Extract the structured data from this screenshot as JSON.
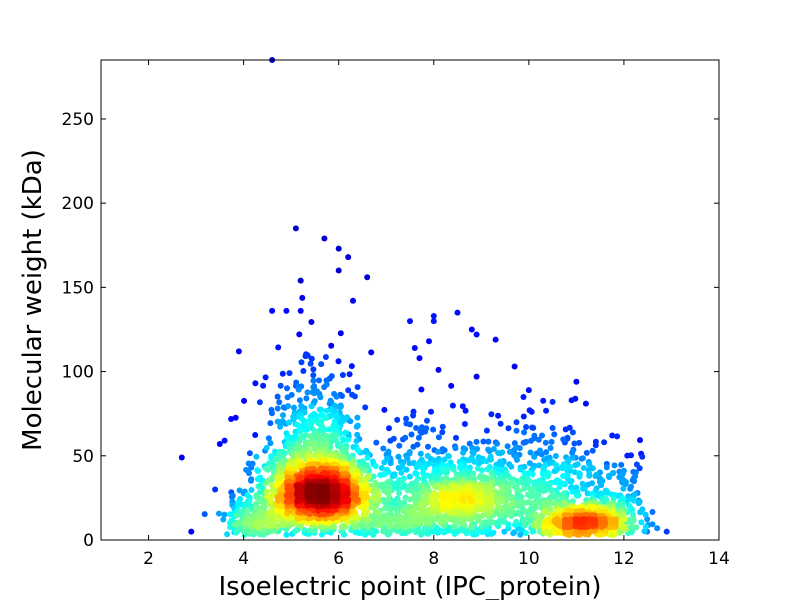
{
  "chart_data": {
    "type": "scatter",
    "title": "",
    "xlabel": "Isoelectric point (IPC_protein)",
    "ylabel": "Molecular weight (kDa)",
    "xlim": [
      1,
      14
    ],
    "ylim": [
      0,
      285
    ],
    "x_ticks": [
      2,
      4,
      6,
      8,
      10,
      12,
      14
    ],
    "y_ticks": [
      0,
      50,
      100,
      150,
      200,
      250
    ],
    "grid": false,
    "legend": "none",
    "colormap": "jet (point density)",
    "density_clusters": [
      {
        "x": 5.6,
        "y": 28,
        "peak_density": "highest"
      },
      {
        "x": 8.6,
        "y": 22,
        "peak_density": "medium"
      },
      {
        "x": 11.3,
        "y": 10,
        "peak_density": "medium"
      },
      {
        "x": 4.3,
        "y": 12,
        "peak_density": "low"
      }
    ],
    "outliers": [
      {
        "x": 4.6,
        "y": 285
      },
      {
        "x": 5.1,
        "y": 185
      },
      {
        "x": 5.7,
        "y": 179
      },
      {
        "x": 6.0,
        "y": 173
      },
      {
        "x": 6.2,
        "y": 168
      },
      {
        "x": 6.6,
        "y": 156
      },
      {
        "x": 6.0,
        "y": 160
      },
      {
        "x": 5.2,
        "y": 154
      },
      {
        "x": 6.3,
        "y": 142
      },
      {
        "x": 4.6,
        "y": 136
      },
      {
        "x": 4.9,
        "y": 136
      },
      {
        "x": 5.2,
        "y": 136
      },
      {
        "x": 8.0,
        "y": 133
      },
      {
        "x": 8.5,
        "y": 135
      },
      {
        "x": 7.5,
        "y": 130
      },
      {
        "x": 8.0,
        "y": 130
      },
      {
        "x": 8.8,
        "y": 125
      },
      {
        "x": 8.9,
        "y": 122
      },
      {
        "x": 9.3,
        "y": 119
      },
      {
        "x": 7.9,
        "y": 118
      },
      {
        "x": 3.9,
        "y": 112
      },
      {
        "x": 7.6,
        "y": 114
      },
      {
        "x": 7.7,
        "y": 108
      },
      {
        "x": 9.7,
        "y": 103
      },
      {
        "x": 8.1,
        "y": 101
      },
      {
        "x": 8.9,
        "y": 97
      },
      {
        "x": 10.0,
        "y": 89
      },
      {
        "x": 11.0,
        "y": 94
      },
      {
        "x": 10.5,
        "y": 82
      },
      {
        "x": 11.2,
        "y": 81
      },
      {
        "x": 10.9,
        "y": 83
      },
      {
        "x": 2.7,
        "y": 49
      },
      {
        "x": 2.9,
        "y": 5
      },
      {
        "x": 3.5,
        "y": 57
      },
      {
        "x": 3.6,
        "y": 59
      },
      {
        "x": 3.4,
        "y": 30
      },
      {
        "x": 12.9,
        "y": 5
      },
      {
        "x": 12.7,
        "y": 7
      },
      {
        "x": 12.3,
        "y": 23
      },
      {
        "x": 12.0,
        "y": 41
      }
    ]
  }
}
